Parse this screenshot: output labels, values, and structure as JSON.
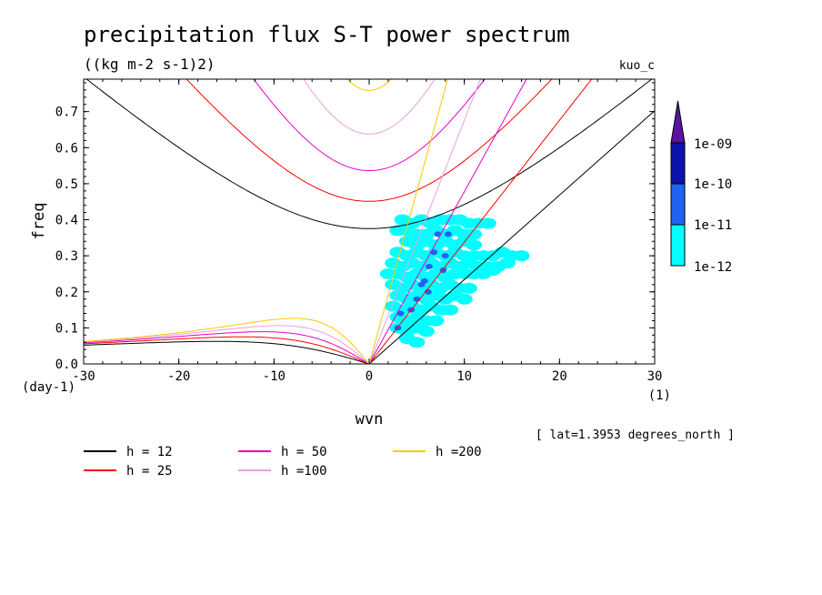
{
  "chart_data": {
    "type": "line",
    "title": "precipitation flux S-T power spectrum",
    "subtitle": "((kg m-2 s-1)2)",
    "model": "kuo_c",
    "xlabel": "wvn",
    "ylabel": "freq",
    "x_unit": "(1)",
    "y_unit": "(day-1)",
    "xlim": [
      -30,
      30
    ],
    "ylim": [
      0,
      0.79
    ],
    "xticks": [
      "-30",
      "-20",
      "-10",
      "0",
      "10",
      "20",
      "30"
    ],
    "yticks": [
      "0.0",
      "0.1",
      "0.2",
      "0.3",
      "0.4",
      "0.5",
      "0.6",
      "0.7"
    ],
    "footnote": "[ lat=1.3953 degrees_north ]",
    "series": [
      {
        "name": "h = 12",
        "h": 12,
        "color": "#000000"
      },
      {
        "name": "h = 25",
        "h": 25,
        "color": "#ff0000"
      },
      {
        "name": "h = 50",
        "h": 50,
        "color": "#e600c8"
      },
      {
        "name": "h =100",
        "h": 100,
        "color": "#e6a0e6"
      },
      {
        "name": "h =200",
        "h": 200,
        "color": "#ffc800"
      }
    ],
    "colorbar": {
      "labels": [
        "1e-09",
        "1e-10",
        "1e-11",
        "1e-12"
      ],
      "colors": [
        "#5a14a0",
        "#0a14aa",
        "#1e64f0",
        "#00ffff"
      ]
    },
    "contour_regions": [
      {
        "level": "1e-12",
        "color": "#00ffff",
        "cells": [
          [
            3.5,
            0.4
          ],
          [
            4.5,
            0.39
          ],
          [
            5.5,
            0.4
          ],
          [
            6.5,
            0.39
          ],
          [
            7.5,
            0.4
          ],
          [
            8.5,
            0.4
          ],
          [
            9.5,
            0.4
          ],
          [
            10.5,
            0.39
          ],
          [
            11.5,
            0.39
          ],
          [
            12.5,
            0.39
          ],
          [
            3,
            0.37
          ],
          [
            4,
            0.37
          ],
          [
            5,
            0.36
          ],
          [
            6,
            0.36
          ],
          [
            7,
            0.37
          ],
          [
            8,
            0.36
          ],
          [
            9,
            0.37
          ],
          [
            10,
            0.36
          ],
          [
            11,
            0.36
          ],
          [
            4,
            0.34
          ],
          [
            5,
            0.33
          ],
          [
            6,
            0.34
          ],
          [
            7,
            0.33
          ],
          [
            8,
            0.34
          ],
          [
            9,
            0.33
          ],
          [
            10,
            0.34
          ],
          [
            11,
            0.33
          ],
          [
            3,
            0.31
          ],
          [
            4,
            0.3
          ],
          [
            5,
            0.31
          ],
          [
            6,
            0.3
          ],
          [
            7,
            0.31
          ],
          [
            8,
            0.3
          ],
          [
            9,
            0.31
          ],
          [
            10,
            0.3
          ],
          [
            11,
            0.3
          ],
          [
            12,
            0.3
          ],
          [
            13,
            0.3
          ],
          [
            14,
            0.31
          ],
          [
            15,
            0.3
          ],
          [
            16,
            0.3
          ],
          [
            2.5,
            0.28
          ],
          [
            3.5,
            0.27
          ],
          [
            4.5,
            0.28
          ],
          [
            5.5,
            0.27
          ],
          [
            6.5,
            0.28
          ],
          [
            7.5,
            0.27
          ],
          [
            8.5,
            0.28
          ],
          [
            9.5,
            0.27
          ],
          [
            10.5,
            0.28
          ],
          [
            11.5,
            0.27
          ],
          [
            12.5,
            0.27
          ],
          [
            13.5,
            0.27
          ],
          [
            14.5,
            0.28
          ],
          [
            2,
            0.25
          ],
          [
            3,
            0.25
          ],
          [
            4,
            0.24
          ],
          [
            5,
            0.25
          ],
          [
            6,
            0.24
          ],
          [
            7,
            0.25
          ],
          [
            8,
            0.24
          ],
          [
            9,
            0.25
          ],
          [
            10,
            0.25
          ],
          [
            11,
            0.25
          ],
          [
            12,
            0.25
          ],
          [
            13,
            0.26
          ],
          [
            2.5,
            0.22
          ],
          [
            3.5,
            0.21
          ],
          [
            4.5,
            0.22
          ],
          [
            5.5,
            0.21
          ],
          [
            6.5,
            0.22
          ],
          [
            7.5,
            0.21
          ],
          [
            8.5,
            0.22
          ],
          [
            9.5,
            0.21
          ],
          [
            10.5,
            0.21
          ],
          [
            3,
            0.19
          ],
          [
            4,
            0.18
          ],
          [
            5,
            0.19
          ],
          [
            6,
            0.18
          ],
          [
            7,
            0.19
          ],
          [
            8,
            0.18
          ],
          [
            9,
            0.19
          ],
          [
            10,
            0.18
          ],
          [
            2.5,
            0.16
          ],
          [
            3.5,
            0.15
          ],
          [
            4.5,
            0.16
          ],
          [
            5.5,
            0.15
          ],
          [
            6.5,
            0.16
          ],
          [
            7.5,
            0.15
          ],
          [
            8.5,
            0.15
          ],
          [
            3,
            0.13
          ],
          [
            4,
            0.12
          ],
          [
            5,
            0.13
          ],
          [
            6,
            0.12
          ],
          [
            7,
            0.12
          ],
          [
            3,
            0.1
          ],
          [
            4,
            0.09
          ],
          [
            5,
            0.1
          ],
          [
            6,
            0.09
          ],
          [
            4,
            0.07
          ],
          [
            5,
            0.06
          ]
        ]
      },
      {
        "level": "1e-11",
        "color": "#1e64f0",
        "cells": [
          [
            7.2,
            0.36
          ],
          [
            6.8,
            0.31
          ],
          [
            6.3,
            0.27
          ],
          [
            5.8,
            0.23
          ],
          [
            5.5,
            0.22
          ],
          [
            5.0,
            0.18
          ],
          [
            4.4,
            0.15
          ],
          [
            3.3,
            0.14
          ],
          [
            3.0,
            0.1
          ],
          [
            8.3,
            0.36
          ],
          [
            8.0,
            0.3
          ],
          [
            7.8,
            0.26
          ],
          [
            6.2,
            0.2
          ]
        ]
      }
    ]
  }
}
